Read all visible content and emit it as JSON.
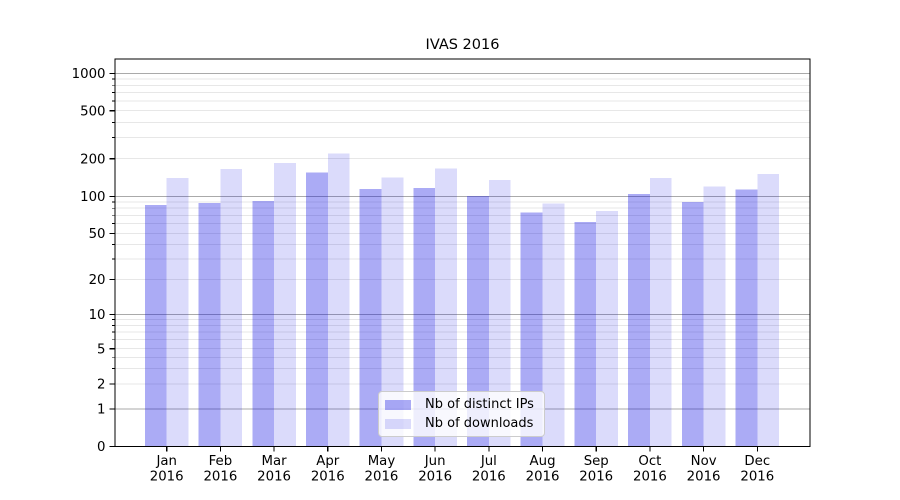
{
  "chart_data": {
    "type": "bar",
    "title": "IVAS 2016",
    "categories": [
      "Jan",
      "Feb",
      "Mar",
      "Apr",
      "May",
      "Jun",
      "Jul",
      "Aug",
      "Sep",
      "Oct",
      "Nov",
      "Dec"
    ],
    "category_year_label": "2016",
    "series": [
      {
        "name": "Nb of distinct IPs",
        "color": "rgba(15,15,225,0.35)",
        "values": [
          85,
          88,
          92,
          155,
          114,
          116,
          101,
          74,
          62,
          104,
          90,
          113
        ]
      },
      {
        "name": "Nb of downloads",
        "color": "rgba(15,15,225,0.15)",
        "values": [
          140,
          165,
          185,
          220,
          142,
          167,
          135,
          87,
          76,
          140,
          120,
          151
        ]
      }
    ],
    "yscale": "symlog",
    "y_ticks": [
      0,
      1,
      2,
      5,
      10,
      20,
      50,
      100,
      200,
      500,
      1000
    ],
    "ylim": [
      0,
      1500
    ],
    "xlabel": "",
    "ylabel": "",
    "grid": true,
    "legend_position": "lower center",
    "colors": {
      "major_grid": "#aaaaaa",
      "minor_grid": "#e7e7e7",
      "axis": "#000000",
      "background": "#ffffff"
    }
  }
}
